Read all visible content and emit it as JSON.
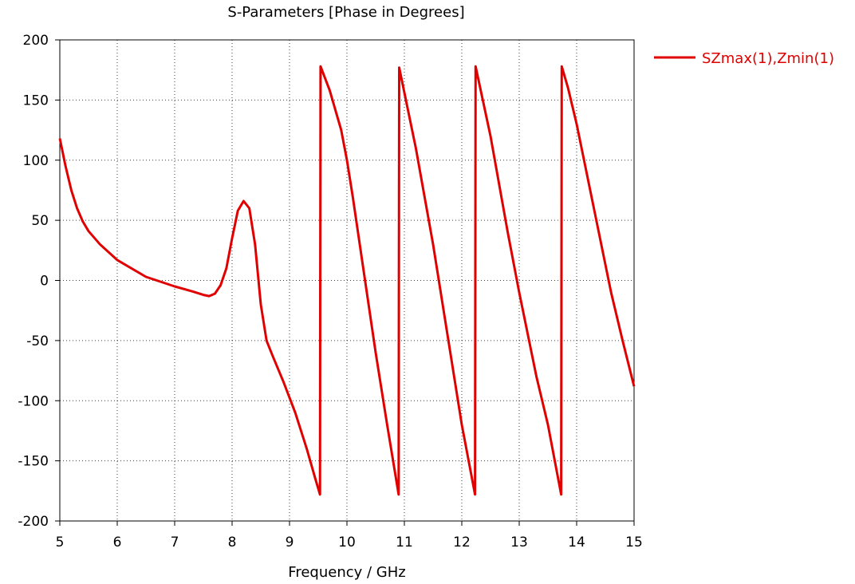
{
  "chart_data": {
    "type": "line",
    "title": "S-Parameters [Phase in Degrees]",
    "xlabel": "Frequency / GHz",
    "ylabel": "",
    "xlim": [
      5,
      15
    ],
    "ylim": [
      -200,
      200
    ],
    "xticks": [
      5,
      6,
      7,
      8,
      9,
      10,
      11,
      12,
      13,
      14,
      15
    ],
    "yticks": [
      -200,
      -150,
      -100,
      -50,
      0,
      50,
      100,
      150,
      200
    ],
    "grid": true,
    "legend_position": "right",
    "series": [
      {
        "name": "SZmax(1),Zmin(1)",
        "color": "#e00000",
        "points": [
          [
            5.0,
            118
          ],
          [
            5.1,
            95
          ],
          [
            5.2,
            75
          ],
          [
            5.3,
            60
          ],
          [
            5.4,
            49
          ],
          [
            5.5,
            41
          ],
          [
            5.7,
            30
          ],
          [
            6.0,
            17
          ],
          [
            6.5,
            3
          ],
          [
            7.0,
            -5
          ],
          [
            7.3,
            -9
          ],
          [
            7.5,
            -12
          ],
          [
            7.6,
            -13
          ],
          [
            7.7,
            -11
          ],
          [
            7.8,
            -4
          ],
          [
            7.9,
            10
          ],
          [
            8.0,
            35
          ],
          [
            8.1,
            58
          ],
          [
            8.2,
            66
          ],
          [
            8.3,
            60
          ],
          [
            8.4,
            30
          ],
          [
            8.5,
            -20
          ],
          [
            8.6,
            -50
          ],
          [
            8.7,
            -62
          ],
          [
            8.9,
            -85
          ],
          [
            9.1,
            -110
          ],
          [
            9.3,
            -140
          ],
          [
            9.45,
            -165
          ],
          [
            9.53,
            -178
          ],
          [
            9.54,
            178
          ],
          [
            9.7,
            158
          ],
          [
            9.9,
            125
          ],
          [
            10.0,
            100
          ],
          [
            10.1,
            70
          ],
          [
            10.3,
            5
          ],
          [
            10.5,
            -60
          ],
          [
            10.7,
            -120
          ],
          [
            10.9,
            -178
          ],
          [
            10.91,
            177
          ],
          [
            11.2,
            110
          ],
          [
            11.5,
            30
          ],
          [
            11.8,
            -60
          ],
          [
            12.0,
            -120
          ],
          [
            12.23,
            -178
          ],
          [
            12.24,
            178
          ],
          [
            12.5,
            120
          ],
          [
            12.8,
            40
          ],
          [
            13.0,
            -10
          ],
          [
            13.3,
            -80
          ],
          [
            13.5,
            -120
          ],
          [
            13.73,
            -178
          ],
          [
            13.74,
            178
          ],
          [
            13.85,
            160
          ],
          [
            14.0,
            130
          ],
          [
            14.3,
            60
          ],
          [
            14.6,
            -10
          ],
          [
            14.8,
            -50
          ],
          [
            15.0,
            -88
          ]
        ]
      }
    ]
  }
}
